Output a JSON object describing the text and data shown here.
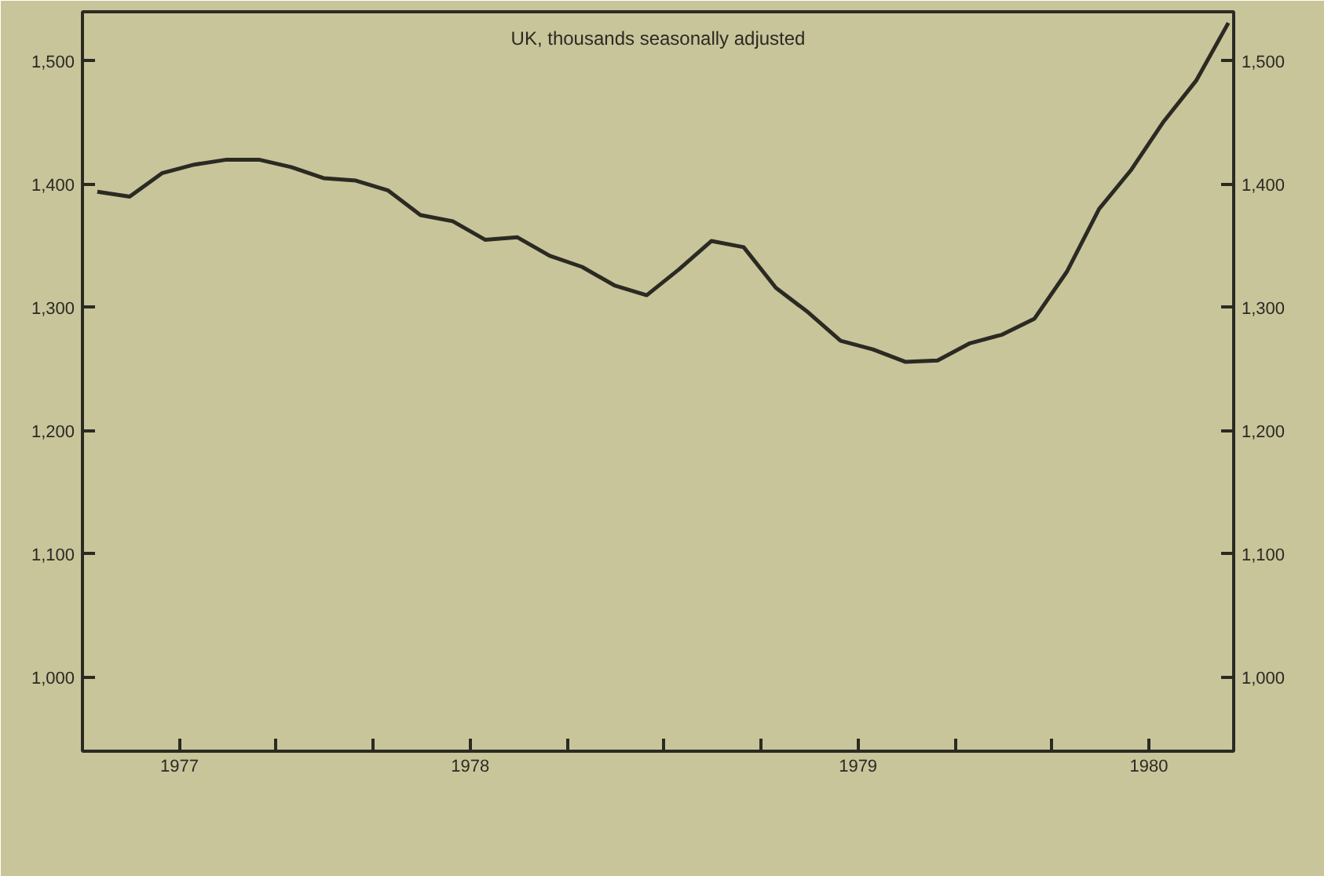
{
  "chart_data": {
    "type": "line",
    "title": "UK, thousands seasonally adjusted",
    "x": [
      "1977-07-15",
      "1977-08-15",
      "1977-09-15",
      "1977-10-15",
      "1977-11-15",
      "1977-12-15",
      "1978-01-15",
      "1978-02-15",
      "1978-03-15",
      "1978-04-15",
      "1978-05-15",
      "1978-06-15",
      "1978-07-15",
      "1978-08-15",
      "1978-09-15",
      "1978-10-15",
      "1978-11-15",
      "1978-12-15",
      "1979-01-15",
      "1979-02-15",
      "1979-03-15",
      "1979-04-15",
      "1979-05-15",
      "1979-06-15",
      "1979-07-15",
      "1979-08-15",
      "1979-09-15",
      "1979-10-15",
      "1979-11-15",
      "1979-12-15",
      "1980-01-15",
      "1980-02-15",
      "1980-03-15",
      "1980-04-15",
      "1980-05-15",
      "1980-06-15"
    ],
    "series": [
      {
        "color": "#2b2a22",
        "values": [
          1394,
          1390,
          1409,
          1416,
          1420,
          1420,
          1414,
          1405,
          1403,
          1395,
          1375,
          1370,
          1355,
          1357,
          1342,
          1333,
          1318,
          1310,
          1331,
          1354,
          1349,
          1316,
          1296,
          1273,
          1266,
          1256,
          1257,
          1271,
          1278,
          1291,
          1329,
          1380,
          1412,
          1451,
          1484,
          1531
        ]
      }
    ],
    "xlim": [
      "1977-07-01",
      "1980-06-20"
    ],
    "xticks": [
      {
        "value": "1977-10-01",
        "label": "1977"
      },
      {
        "value": "1978-01-01",
        "label": null
      },
      {
        "value": "1978-04-01",
        "label": null
      },
      {
        "value": "1978-07-01",
        "label": "1978"
      },
      {
        "value": "1978-10-01",
        "label": null
      },
      {
        "value": "1979-01-01",
        "label": null
      },
      {
        "value": "1979-04-01",
        "label": null
      },
      {
        "value": "1979-07-01",
        "label": "1979"
      },
      {
        "value": "1979-10-01",
        "label": null
      },
      {
        "value": "1980-01-01",
        "label": null
      },
      {
        "value": "1980-04-01",
        "label": "1980"
      }
    ],
    "ylim": [
      940,
      1540
    ],
    "yticks": [
      {
        "value": 1000,
        "label": "1,000"
      },
      {
        "value": 1100,
        "label": "1,100"
      },
      {
        "value": 1200,
        "label": "1,200"
      },
      {
        "value": 1300,
        "label": "1,300"
      },
      {
        "value": 1400,
        "label": "1,400"
      },
      {
        "value": 1500,
        "label": "1,500"
      }
    ],
    "y2lim": [
      940,
      1540
    ],
    "y2ticks": [
      {
        "value": 1000,
        "label": "1,000"
      },
      {
        "value": 1100,
        "label": "1,100"
      },
      {
        "value": 1200,
        "label": "1,200"
      },
      {
        "value": 1300,
        "label": "1,300"
      },
      {
        "value": 1400,
        "label": "1,400"
      },
      {
        "value": 1500,
        "label": "1,500"
      }
    ],
    "grid": false,
    "marker": "none",
    "line_style": "solid"
  }
}
